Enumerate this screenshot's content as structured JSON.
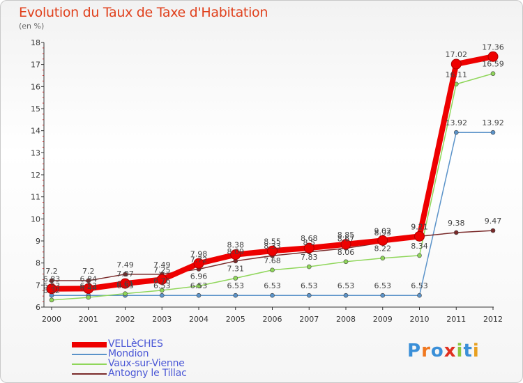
{
  "chart_data": {
    "type": "line",
    "title": "Evolution du Taux de Taxe d'Habitation",
    "ylabel": "(en %)",
    "xlabel": "",
    "x": [
      "2000",
      "2001",
      "2002",
      "2003",
      "2004",
      "2005",
      "2006",
      "2007",
      "2008",
      "2009",
      "2010",
      "2011",
      "2012"
    ],
    "ylim": [
      6,
      18
    ],
    "yticks": [
      "6",
      "7",
      "8",
      "9",
      "10",
      "11",
      "12",
      "13",
      "14",
      "15",
      "16",
      "17",
      "18"
    ],
    "grid": false,
    "legend": "bottom-left",
    "series": [
      {
        "name": "VELLèCHES",
        "color": "#ee0000",
        "emphasis": true,
        "values": [
          6.83,
          6.84,
          7.07,
          7.25,
          7.98,
          8.38,
          8.55,
          8.68,
          8.85,
          9.02,
          9.21,
          17.02,
          17.36
        ],
        "labels": [
          "6.83",
          "6.84",
          "7.07",
          "7.25",
          "7.98",
          "8.38",
          "8.55",
          "8.68",
          "8.85",
          "9.02",
          "9.21",
          "17.02",
          "17.36"
        ]
      },
      {
        "name": "Mondion",
        "color": "#5b93c9",
        "values": [
          6.53,
          6.53,
          6.53,
          6.53,
          6.53,
          6.53,
          6.53,
          6.53,
          6.53,
          6.53,
          6.53,
          13.92,
          13.92
        ],
        "labels": [
          "6.53",
          "6.53",
          "6.53",
          "6.53",
          "6.53",
          "6.53",
          "6.53",
          "6.53",
          "6.53",
          "6.53",
          "6.53",
          "13.92",
          "13.92"
        ]
      },
      {
        "name": "Vaux-sur-Vienne",
        "color": "#8fd65a",
        "values": [
          6.32,
          6.44,
          6.61,
          6.76,
          6.96,
          7.31,
          7.68,
          7.83,
          8.06,
          8.22,
          8.34,
          16.11,
          16.59
        ],
        "labels": [
          "6.32",
          "6.44",
          "6.61",
          "6.76",
          "6.96",
          "7.31",
          "7.68",
          "7.83",
          "8.06",
          "8.22",
          "8.34",
          "16.11",
          "16.59"
        ]
      },
      {
        "name": "Antogny le Tillac",
        "color": "#7a2a2a",
        "values": [
          7.2,
          7.2,
          7.49,
          7.49,
          7.72,
          8.09,
          8.33,
          8.5,
          8.67,
          8.93,
          9.21,
          9.38,
          9.47
        ],
        "labels": [
          "7.2",
          "7.2",
          "7.49",
          "7.49",
          "7.72",
          "8.09",
          "8.33",
          "8.5",
          "8.67",
          "8.93",
          "9.21",
          "9.38",
          "9.47"
        ]
      }
    ]
  },
  "logo": {
    "text": "Proxiti",
    "colors": [
      "#3a8fd8",
      "#f07820",
      "#3a8fd8",
      "#e03020",
      "#8cc63f",
      "#3a8fd8",
      "#e8a020"
    ]
  }
}
